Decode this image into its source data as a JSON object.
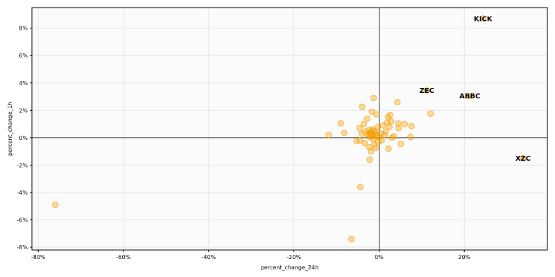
{
  "chart_data": {
    "type": "scatter",
    "xlabel": "percent_change_24h",
    "ylabel": "percent_change_1h",
    "xlim": [
      -81.5,
      39.5
    ],
    "ylim": [
      -8.2,
      9.5
    ],
    "grid": true,
    "x_ticks": [
      {
        "value": -80,
        "label": "-80%"
      },
      {
        "value": -60,
        "label": "-60%"
      },
      {
        "value": -40,
        "label": "-40%"
      },
      {
        "value": -20,
        "label": "-20%"
      },
      {
        "value": 0,
        "label": "0%"
      },
      {
        "value": 20,
        "label": "20%"
      }
    ],
    "y_ticks": [
      {
        "value": -8,
        "label": "-8%"
      },
      {
        "value": -6,
        "label": "-6%"
      },
      {
        "value": -4,
        "label": "-4%"
      },
      {
        "value": -2,
        "label": "-2%"
      },
      {
        "value": 0,
        "label": "0%"
      },
      {
        "value": 2,
        "label": "2%"
      },
      {
        "value": 4,
        "label": "4%"
      },
      {
        "value": 6,
        "label": "6%"
      },
      {
        "value": 8,
        "label": "8%"
      }
    ],
    "colors": {
      "point_fill": "#ffa500",
      "point_stroke": "#e69500",
      "grid": "#e6e6e6",
      "plot_bg": "#fbfbfb",
      "zero_line": "#000000"
    },
    "points": [
      {
        "x": -76.0,
        "y": -4.9
      },
      {
        "x": -11.8,
        "y": 0.2
      },
      {
        "x": -9.0,
        "y": 1.05
      },
      {
        "x": -8.2,
        "y": 0.35
      },
      {
        "x": -6.5,
        "y": -7.4
      },
      {
        "x": -5.3,
        "y": -0.25
      },
      {
        "x": -4.6,
        "y": 0.7
      },
      {
        "x": -4.4,
        "y": -3.6
      },
      {
        "x": -4.0,
        "y": 2.25
      },
      {
        "x": -4.5,
        "y": -0.2
      },
      {
        "x": -4.1,
        "y": 0.3
      },
      {
        "x": -3.6,
        "y": 1.0
      },
      {
        "x": -3.4,
        "y": -0.4
      },
      {
        "x": -3.2,
        "y": 0.45
      },
      {
        "x": -2.8,
        "y": 1.4
      },
      {
        "x": -2.7,
        "y": 0.15
      },
      {
        "x": -2.5,
        "y": 0.25
      },
      {
        "x": -2.4,
        "y": 0.55
      },
      {
        "x": -2.3,
        "y": -0.7
      },
      {
        "x": -2.2,
        "y": -1.6
      },
      {
        "x": -2.1,
        "y": 0.05
      },
      {
        "x": -2.0,
        "y": 0.4
      },
      {
        "x": -1.9,
        "y": -1.0
      },
      {
        "x": -1.8,
        "y": 0.3
      },
      {
        "x": -1.7,
        "y": 1.9
      },
      {
        "x": -1.6,
        "y": 0.6
      },
      {
        "x": -1.5,
        "y": 0.1
      },
      {
        "x": -1.4,
        "y": -0.1
      },
      {
        "x": -1.3,
        "y": 2.9
      },
      {
        "x": -1.2,
        "y": 0.5
      },
      {
        "x": -1.1,
        "y": -0.5
      },
      {
        "x": -1.0,
        "y": 0.2
      },
      {
        "x": -0.9,
        "y": 0.4
      },
      {
        "x": -0.8,
        "y": -0.75
      },
      {
        "x": -0.6,
        "y": 1.7
      },
      {
        "x": -0.5,
        "y": 0.15
      },
      {
        "x": -0.3,
        "y": 0.8
      },
      {
        "x": -0.2,
        "y": -0.3
      },
      {
        "x": 0.1,
        "y": 0.05
      },
      {
        "x": 0.4,
        "y": 0.3
      },
      {
        "x": 0.6,
        "y": -0.2
      },
      {
        "x": 0.9,
        "y": 0.9
      },
      {
        "x": 1.3,
        "y": 0.2
      },
      {
        "x": 1.6,
        "y": 0.45
      },
      {
        "x": 1.9,
        "y": 1.1
      },
      {
        "x": 2.1,
        "y": 1.5
      },
      {
        "x": 2.2,
        "y": -0.8
      },
      {
        "x": 2.4,
        "y": 0.8
      },
      {
        "x": 2.6,
        "y": 1.65
      },
      {
        "x": 2.8,
        "y": 1.2
      },
      {
        "x": 3.0,
        "y": 0.0
      },
      {
        "x": 3.5,
        "y": 0.1
      },
      {
        "x": 4.3,
        "y": 2.6
      },
      {
        "x": 4.5,
        "y": 1.05
      },
      {
        "x": 4.6,
        "y": 0.7
      },
      {
        "x": 5.1,
        "y": -0.45
      },
      {
        "x": 6.0,
        "y": 1.0
      },
      {
        "x": 7.4,
        "y": 0.05
      },
      {
        "x": 7.6,
        "y": 0.85
      },
      {
        "x": 12.1,
        "y": 1.75
      },
      {
        "x": 11.2,
        "y": 3.45,
        "label": "ZEC"
      },
      {
        "x": 24.4,
        "y": 8.7,
        "label": "KICK"
      },
      {
        "x": 21.3,
        "y": 3.05,
        "label": "ABBC"
      },
      {
        "x": 33.8,
        "y": -1.5,
        "label": "XZC"
      }
    ]
  }
}
